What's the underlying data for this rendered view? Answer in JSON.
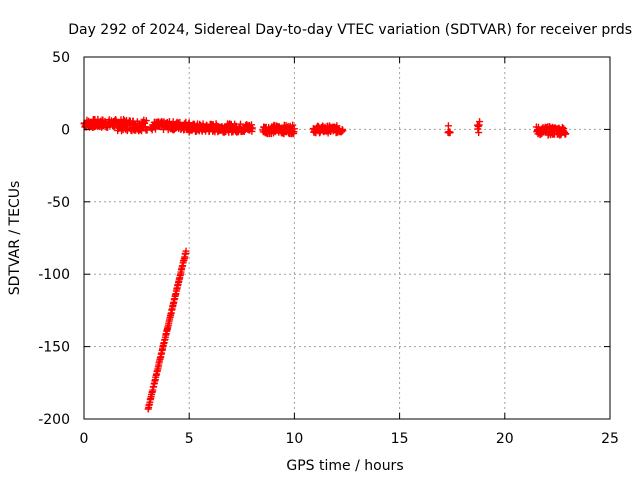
{
  "chart_data": {
    "type": "scatter",
    "title": "Day 292 of 2024, Sidereal Day-to-day VTEC variation (SDTVAR) for receiver prds",
    "xlabel": "GPS time / hours",
    "ylabel": "SDTVAR / TECUs",
    "xlim": [
      0,
      25
    ],
    "ylim": [
      -200,
      50
    ],
    "xticks": [
      0,
      5,
      10,
      15,
      20,
      25
    ],
    "yticks": [
      50,
      0,
      -50,
      -100,
      -150,
      -200
    ],
    "grid": true,
    "marker": "plus",
    "series_color": "#ff0000",
    "series": [
      {
        "name": "prds",
        "segments": [
          {
            "x_start": 0.0,
            "x_end": 1.5,
            "y_center": 4.0,
            "y_spread": 3.0
          },
          {
            "x_start": 1.5,
            "x_end": 3.0,
            "y_center": 3.0,
            "y_spread": 4.0
          },
          {
            "x_start": 3.2,
            "x_end": 5.0,
            "y_center": 2.5,
            "y_spread": 3.0
          },
          {
            "x_start": 5.0,
            "x_end": 8.0,
            "y_center": 1.0,
            "y_spread": 3.0
          },
          {
            "x_start": 8.5,
            "x_end": 10.0,
            "y_center": 0.0,
            "y_spread": 3.0
          },
          {
            "x_start": 10.9,
            "x_end": 12.3,
            "y_center": 0.0,
            "y_spread": 2.5
          },
          {
            "x_start": 17.3,
            "x_end": 17.4,
            "y_center": 1.0,
            "y_spread": 4.0
          },
          {
            "x_start": 18.7,
            "x_end": 18.8,
            "y_center": 2.0,
            "y_spread": 5.0
          },
          {
            "x_start": 21.5,
            "x_end": 22.9,
            "y_center": -1.0,
            "y_spread": 3.0
          },
          {
            "x_start": 3.05,
            "x_end": 4.85,
            "y_start": -193.0,
            "y_end": -84.0,
            "y_spread": 1.0,
            "linear": true
          }
        ]
      }
    ]
  }
}
